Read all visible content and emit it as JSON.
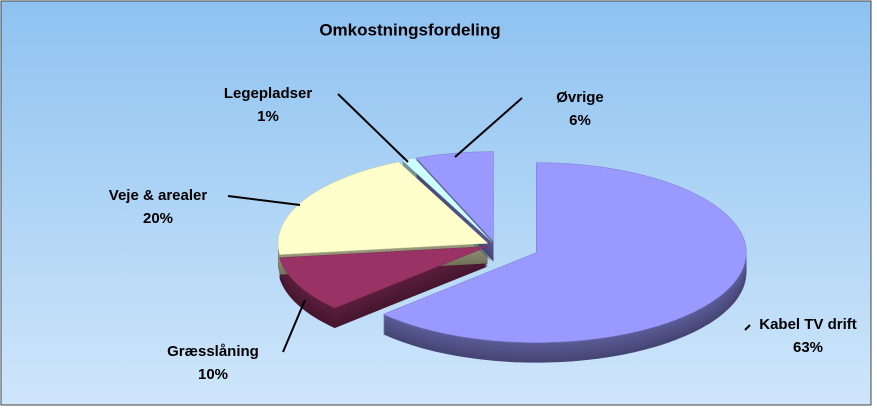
{
  "chart_data": {
    "type": "pie",
    "title": "Omkostningsfordeling",
    "categories": [
      "Kabel TV drift",
      "Græsslåning",
      "Veje & arealer",
      "Legepladser",
      "Øvrige"
    ],
    "values": [
      63,
      10,
      20,
      1,
      6
    ],
    "value_labels": [
      "63%",
      "10%",
      "20%",
      "1%",
      "6%"
    ],
    "colors": [
      "#9999ff",
      "#993366",
      "#ffffcc",
      "#ccffff",
      "#9999ff"
    ]
  }
}
